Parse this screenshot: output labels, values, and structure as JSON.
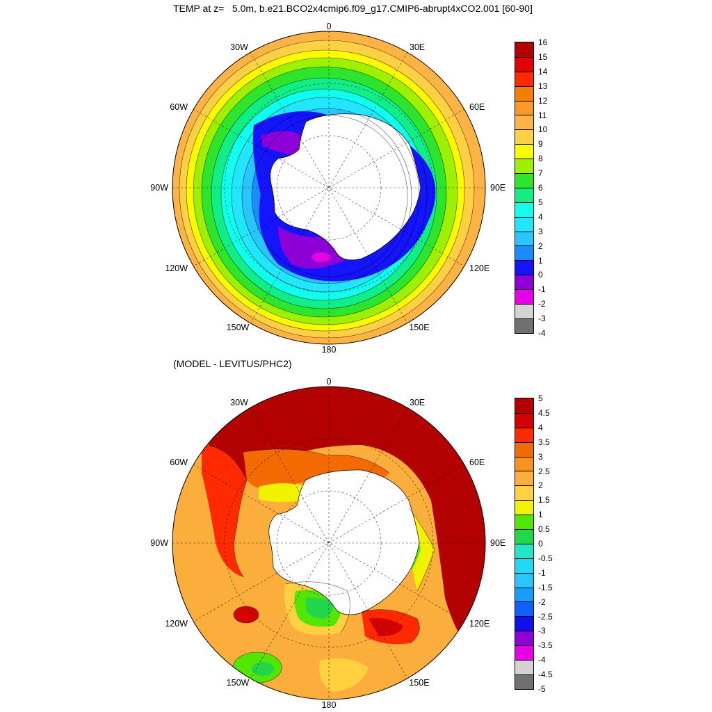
{
  "top_panel": {
    "title": "TEMP at z=   5.0m, b.e21.BCO2x4cmip6.f09_g17.CMIP6-abrupt4xCO2.001 [60-90]",
    "lon_labels": {
      "n": "0",
      "nw": "30W",
      "ne": "30E",
      "wnw": "60W",
      "ene": "60E",
      "w": "90W",
      "e": "90E",
      "wsw": "120W",
      "ese": "120E",
      "ssw": "150W",
      "sse": "150E",
      "s": "180"
    },
    "colorbar": {
      "ticks": [
        "16",
        "15",
        "14",
        "13",
        "12",
        "11",
        "10",
        "9",
        "8",
        "7",
        "6",
        "5",
        "4",
        "3",
        "2",
        "1",
        "0",
        "-1",
        "-2",
        "-3",
        "-4"
      ],
      "colors": [
        "#b30000",
        "#e30000",
        "#ff2a00",
        "#f77f00",
        "#fb9a2c",
        "#fdb444",
        "#ffcf44",
        "#fbfb00",
        "#9cf000",
        "#2ee52e",
        "#11ee88",
        "#11ffee",
        "#22e6ff",
        "#29c5ff",
        "#1a8cff",
        "#1414ff",
        "#8e00d8",
        "#e600e6",
        "#d3d3d3",
        "#707070"
      ]
    }
  },
  "bottom_panel": {
    "title": "(MODEL - LEVITUS/PHC2)",
    "lon_labels": {
      "n": "0",
      "nw": "30W",
      "ne": "30E",
      "wnw": "60W",
      "ene": "60E",
      "w": "90W",
      "e": "90E",
      "wsw": "120W",
      "ese": "120E",
      "ssw": "150W",
      "sse": "150E",
      "s": "180"
    },
    "colorbar": {
      "ticks": [
        "5",
        "4.5",
        "4",
        "3.5",
        "3",
        "2.5",
        "2",
        "1.5",
        "1",
        "0.5",
        "0",
        "-0.5",
        "-1",
        "-1.5",
        "-2",
        "-2.5",
        "-3",
        "-3.5",
        "-4",
        "-4.5",
        "-5"
      ],
      "colors": [
        "#b30000",
        "#d40000",
        "#ff2a00",
        "#f26a00",
        "#f7921c",
        "#fbae3c",
        "#ffd040",
        "#f2f200",
        "#52e600",
        "#22d64a",
        "#22e6c8",
        "#22d8f8",
        "#29c5ff",
        "#1a9cff",
        "#1060ff",
        "#0f0ff0",
        "#8e00d8",
        "#e600e6",
        "#d3d3d3",
        "#707070"
      ]
    }
  }
}
